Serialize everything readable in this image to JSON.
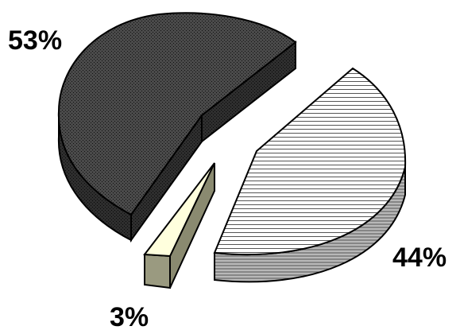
{
  "chart_data": {
    "type": "pie",
    "style": "3d-exploded",
    "slices": [
      {
        "label": "53%",
        "value": 53,
        "color": "#3a3a3a",
        "side_color": "#252525",
        "pattern": "dark-stipple"
      },
      {
        "label": "44%",
        "value": 44,
        "color": "#ffffff",
        "side_color": "#9a9a9a",
        "pattern": "horizontal-lines"
      },
      {
        "label": "3%",
        "value": 3,
        "color": "#ffffdd",
        "side_color": "#9a9a80",
        "pattern": "solid"
      }
    ]
  }
}
